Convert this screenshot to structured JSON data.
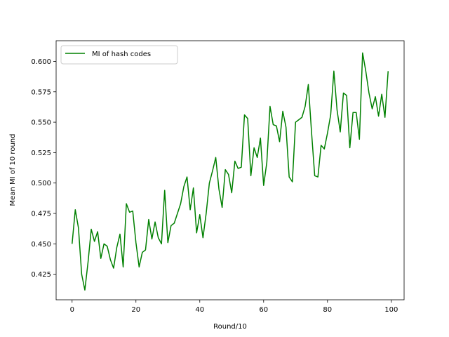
{
  "chart_data": {
    "type": "line",
    "title": "",
    "xlabel": "Round/10",
    "ylabel": "Mean MI of 10 round",
    "xlim": [
      -5,
      104
    ],
    "ylim": [
      0.404,
      0.617
    ],
    "xticks": [
      0,
      20,
      40,
      60,
      80,
      100
    ],
    "yticks": [
      0.425,
      0.45,
      0.475,
      0.5,
      0.525,
      0.55,
      0.575,
      0.6
    ],
    "ytick_labels": [
      "0.425",
      "0.450",
      "0.475",
      "0.500",
      "0.525",
      "0.550",
      "0.575",
      "0.600"
    ],
    "grid": false,
    "legend_position": "upper-left",
    "series": [
      {
        "name": "MI of hash codes",
        "color": "#008000",
        "x": [
          0,
          1,
          2,
          3,
          4,
          5,
          6,
          7,
          8,
          9,
          10,
          11,
          12,
          13,
          14,
          15,
          16,
          17,
          18,
          19,
          20,
          21,
          22,
          23,
          24,
          25,
          26,
          27,
          28,
          29,
          30,
          31,
          32,
          33,
          34,
          35,
          36,
          37,
          38,
          39,
          40,
          41,
          42,
          43,
          44,
          45,
          46,
          47,
          48,
          49,
          50,
          51,
          52,
          53,
          54,
          55,
          56,
          57,
          58,
          59,
          60,
          61,
          62,
          63,
          64,
          65,
          66,
          67,
          68,
          69,
          70,
          71,
          72,
          73,
          74,
          75,
          76,
          77,
          78,
          79,
          80,
          81,
          82,
          83,
          84,
          85,
          86,
          87,
          88,
          89,
          90,
          91,
          92,
          93,
          94,
          95,
          96,
          97,
          98,
          99
        ],
        "y": [
          0.45,
          0.478,
          0.463,
          0.425,
          0.412,
          0.435,
          0.462,
          0.452,
          0.46,
          0.438,
          0.45,
          0.448,
          0.437,
          0.43,
          0.447,
          0.458,
          0.431,
          0.483,
          0.476,
          0.477,
          0.451,
          0.431,
          0.443,
          0.445,
          0.47,
          0.454,
          0.468,
          0.455,
          0.45,
          0.494,
          0.451,
          0.465,
          0.467,
          0.475,
          0.483,
          0.497,
          0.505,
          0.478,
          0.496,
          0.459,
          0.474,
          0.455,
          0.475,
          0.5,
          0.51,
          0.521,
          0.495,
          0.48,
          0.511,
          0.507,
          0.492,
          0.518,
          0.512,
          0.513,
          0.556,
          0.553,
          0.506,
          0.529,
          0.521,
          0.537,
          0.498,
          0.517,
          0.563,
          0.548,
          0.547,
          0.534,
          0.559,
          0.546,
          0.505,
          0.501,
          0.55,
          0.552,
          0.554,
          0.563,
          0.581,
          0.542,
          0.506,
          0.505,
          0.531,
          0.528,
          0.541,
          0.556,
          0.592,
          0.56,
          0.542,
          0.574,
          0.572,
          0.529,
          0.558,
          0.558,
          0.536,
          0.607,
          0.592,
          0.574,
          0.561,
          0.571,
          0.555,
          0.573,
          0.554,
          0.592
        ]
      }
    ]
  }
}
